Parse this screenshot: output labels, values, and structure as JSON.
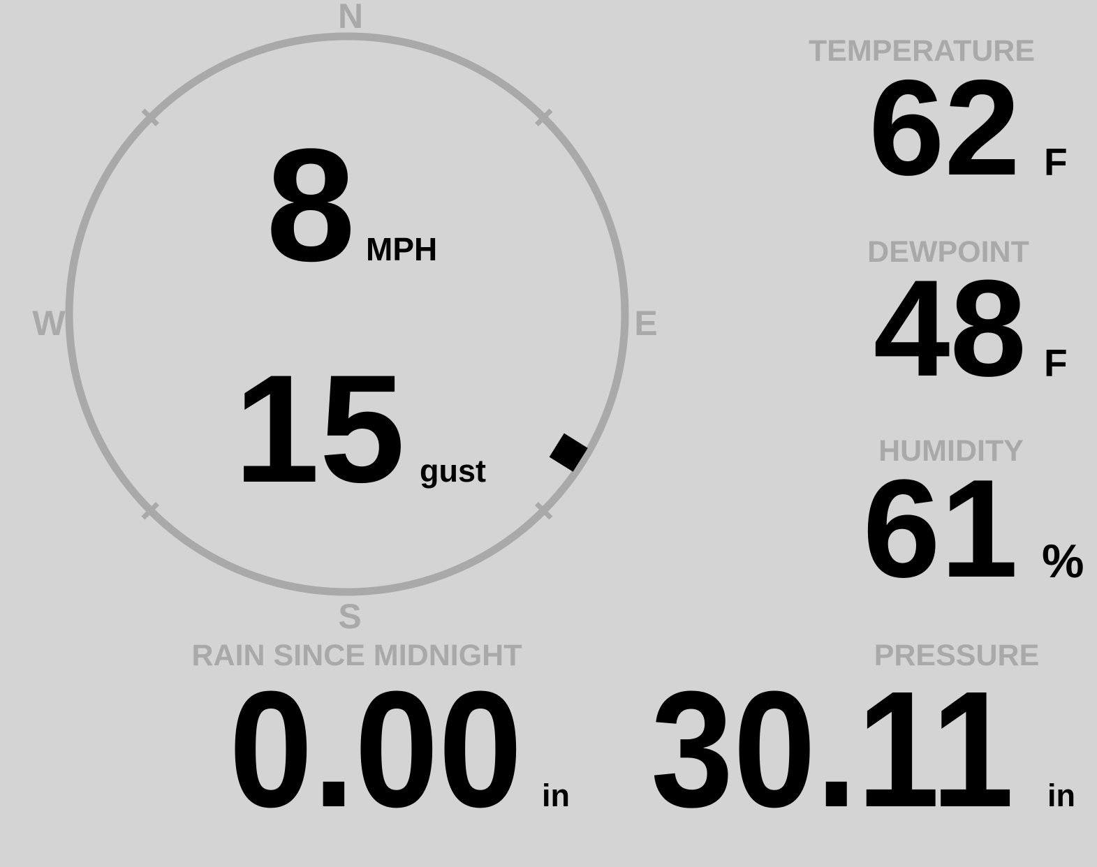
{
  "colors": {
    "background": "#d4d4d4",
    "muted": "#a9a9a9",
    "ink": "#000000"
  },
  "wind_gauge": {
    "compass": {
      "north_label": "N",
      "east_label": "E",
      "south_label": "S",
      "west_label": "W"
    },
    "direction_degrees": 122,
    "speed_value": "8",
    "speed_unit": "MPH",
    "gust_value": "15",
    "gust_unit": "gust"
  },
  "stats": {
    "temperature": {
      "label": "TEMPERATURE",
      "value": "62",
      "unit": "F"
    },
    "dewpoint": {
      "label": "DEWPOINT",
      "value": "48",
      "unit": "F"
    },
    "humidity": {
      "label": "HUMIDITY",
      "value": "61",
      "unit": "%"
    },
    "rain": {
      "label": "RAIN SINCE MIDNIGHT",
      "value": "0.00",
      "unit": "in"
    },
    "pressure": {
      "label": "PRESSURE",
      "value": "30.11",
      "unit": "in"
    }
  }
}
